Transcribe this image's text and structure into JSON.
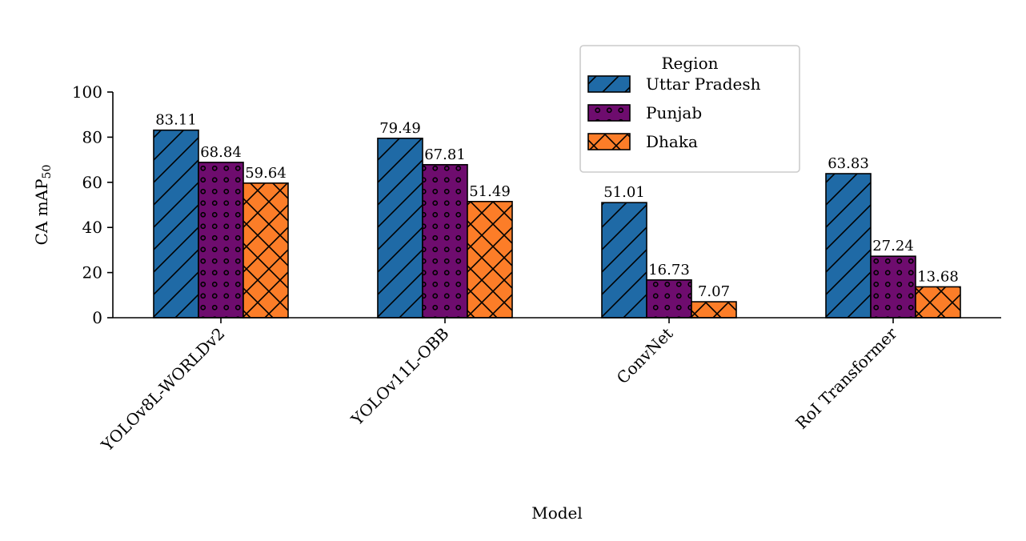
{
  "chart_data": {
    "type": "bar",
    "title": "",
    "xlabel": "Model",
    "ylabel": "CA mAP",
    "ylabel_subscript": "50",
    "ylim": [
      0,
      100
    ],
    "yticks": [
      0,
      20,
      40,
      60,
      80,
      100
    ],
    "ytick_labels": [
      "0",
      "20",
      "40",
      "60",
      "80",
      "100"
    ],
    "grid": false,
    "categories": [
      "YOLOv8L-WORLDv2",
      "YOLOv11L-OBB",
      "ConvNet",
      "RoI Transformer"
    ],
    "series": [
      {
        "name": "Uttar Pradesh",
        "color": "#1f6aa6",
        "hatch": "diagonal",
        "values": [
          83.11,
          79.49,
          51.01,
          63.83
        ],
        "labels": [
          "83.11",
          "79.49",
          "51.01",
          "63.83"
        ]
      },
      {
        "name": "Punjab",
        "color": "#6e0c6e",
        "hatch": "circles",
        "values": [
          68.84,
          67.81,
          16.73,
          27.24
        ],
        "labels": [
          "68.84",
          "67.81",
          "16.73",
          "27.24"
        ]
      },
      {
        "name": "Dhaka",
        "color": "#fc7d28",
        "hatch": "crosshatch",
        "values": [
          59.64,
          51.49,
          7.07,
          13.68
        ],
        "labels": [
          "59.64",
          "51.49",
          "7.07",
          "13.68"
        ]
      }
    ],
    "legend": {
      "title": "Region",
      "placement": "top-right"
    }
  }
}
